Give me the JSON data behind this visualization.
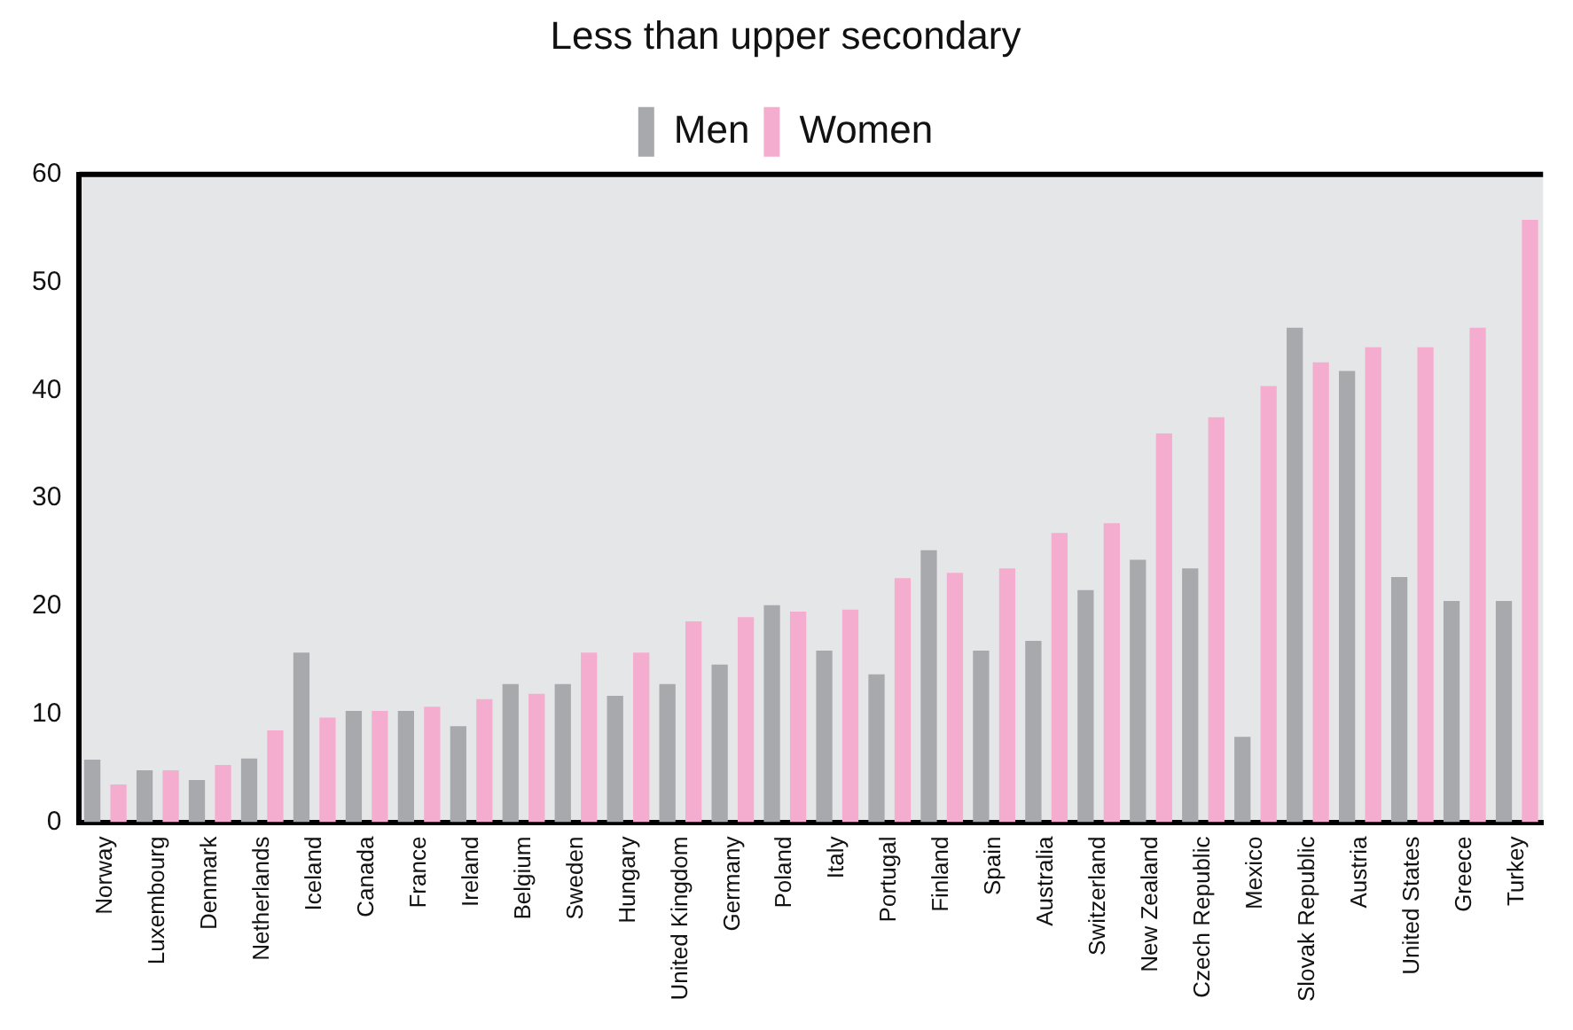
{
  "chart_data": {
    "type": "bar",
    "title": "Less than upper secondary",
    "categories": [
      "Norway",
      "Luxembourg",
      "Denmark",
      "Netherlands",
      "Iceland",
      "Canada",
      "France",
      "Ireland",
      "Belgium",
      "Sweden",
      "Hungary",
      "United Kingdom",
      "Germany",
      "Poland",
      "Italy",
      "Portugal",
      "Finland",
      "Spain",
      "Australia",
      "Switzerland",
      "New Zealand",
      "Czech Republic",
      "Mexico",
      "Slovak Republic",
      "Austria",
      "United States",
      "Greece",
      "Turkey"
    ],
    "series": [
      {
        "name": "Men",
        "color": "#a8a9ac",
        "values": [
          5.8,
          4.8,
          3.9,
          5.9,
          15.7,
          10.3,
          10.3,
          8.9,
          12.8,
          12.8,
          11.7,
          12.8,
          14.6,
          20.1,
          15.9,
          13.7,
          25.2,
          15.9,
          16.8,
          21.5,
          24.3,
          23.5,
          7.9,
          45.8,
          41.8,
          22.7,
          20.5,
          20.5
        ]
      },
      {
        "name": "Women",
        "color": "#f5adcf",
        "values": [
          3.5,
          4.8,
          5.3,
          8.5,
          9.7,
          10.3,
          10.7,
          11.4,
          11.9,
          15.7,
          15.7,
          18.6,
          19.0,
          19.5,
          19.7,
          22.6,
          23.1,
          23.5,
          26.8,
          27.7,
          36.0,
          37.5,
          40.4,
          42.6,
          44.0,
          44.0,
          45.8,
          55.8
        ]
      }
    ],
    "ylim": [
      0,
      60
    ],
    "yticks": [
      0,
      10,
      20,
      30,
      40,
      50,
      60
    ],
    "grid": false,
    "legend": "top"
  }
}
